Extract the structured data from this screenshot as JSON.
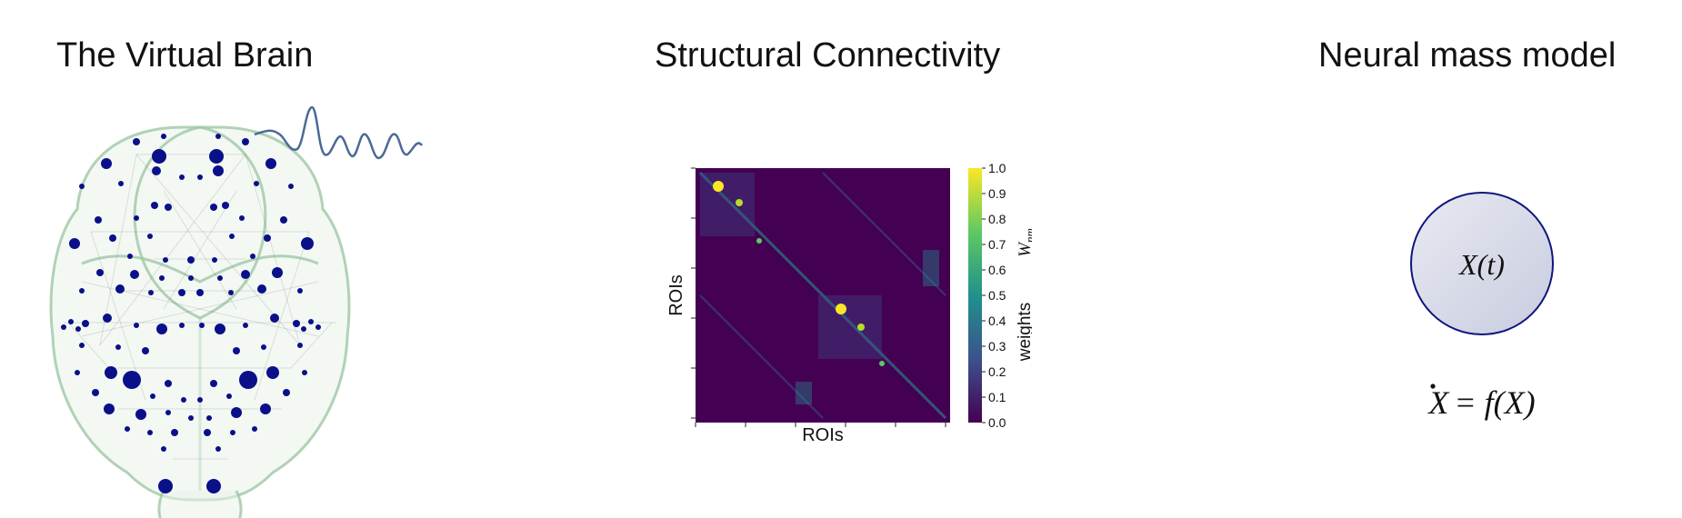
{
  "panels": {
    "brain": {
      "title": "The Virtual Brain"
    },
    "connectivity": {
      "title": "Structural Connectivity",
      "xlabel": "ROIs",
      "ylabel": "ROIs",
      "colorbar_label": "weights",
      "colorbar_symbol": "W",
      "colorbar_symbol_sub": "nm",
      "colorbar_ticks": [
        "0.0",
        "0.1",
        "0.2",
        "0.3",
        "0.4",
        "0.5",
        "0.6",
        "0.7",
        "0.8",
        "0.9",
        "1.0"
      ]
    },
    "nmm": {
      "title": "Neural mass model",
      "node_label": "X(t)",
      "equation_lhs": "X",
      "equation_rhs": "= f(X)"
    }
  },
  "colors": {
    "node": "#0a0f8a",
    "brain_outline": "#9fc7a6",
    "signal": "#4b6a96",
    "matrix_bg": "#440154",
    "circle_fill": "#d8dbe9",
    "circle_stroke": "#10157d"
  }
}
